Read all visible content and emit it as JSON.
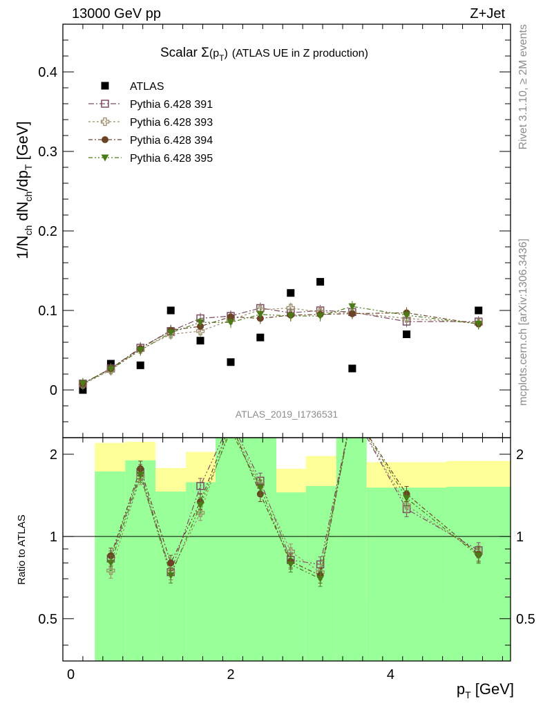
{
  "header": {
    "left": "13000 GeV pp",
    "right": "Z+Jet"
  },
  "side_labels": {
    "top": "Rivet 3.1.10, ≥ 2M events",
    "bottom": "mcplots.cern.ch [arXiv:1306.3436]"
  },
  "analysis_label": "ATLAS_2019_I1736531",
  "chart_data": [
    {
      "type": "scatter",
      "panel": "main",
      "title": "Scalar Σ(p_T) (ATLAS UE in Z production)",
      "title_parts": {
        "prefix": "Scalar ",
        "sigma": "Σ",
        "p_open": "(p",
        "sub": "T",
        "close": ")",
        "rest": "(ATLAS UE in Z production)"
      },
      "ylabel": "1/N_ch dN_ch/dp_T [GeV]",
      "ylabel_parts": {
        "a": "1/N",
        "a_sub": "ch",
        "b": " dN",
        "b_sub": "ch",
        "c": "/dp",
        "c_sub": "T",
        "d": " [GeV]"
      },
      "xlim": [
        -0.1,
        5.5
      ],
      "ylim": [
        -0.06,
        0.46
      ],
      "yticks": [
        0,
        0.1,
        0.2,
        0.3,
        0.4
      ],
      "ytick_labels": [
        "0",
        "0.1",
        "0.2",
        "0.3",
        "0.4"
      ],
      "legend_position": "top-left",
      "series": [
        {
          "name": "ATLAS",
          "color": "#000000",
          "marker": "square-filled",
          "x": [
            0.15,
            0.5,
            0.87,
            1.25,
            1.62,
            2.0,
            2.37,
            2.75,
            3.12,
            3.52,
            4.2,
            5.1
          ],
          "y": [
            0.0,
            0.033,
            0.031,
            0.1,
            0.062,
            0.035,
            0.066,
            0.122,
            0.136,
            0.027,
            0.07,
            0.1
          ]
        },
        {
          "name": "Pythia 6.428 391",
          "color": "#7b4b63",
          "marker": "square-open",
          "dash": "8,3,2,3",
          "x": [
            0.15,
            0.5,
            0.87,
            1.25,
            1.62,
            2.0,
            2.37,
            2.75,
            3.12,
            3.52,
            4.2,
            5.1
          ],
          "y": [
            0.008,
            0.027,
            0.053,
            0.074,
            0.09,
            0.093,
            0.103,
            0.097,
            0.1,
            0.098,
            0.086,
            0.086
          ]
        },
        {
          "name": "Pythia 6.428 393",
          "color": "#9b8b68",
          "marker": "cross-open",
          "dash": "3,3",
          "x": [
            0.15,
            0.5,
            0.87,
            1.25,
            1.62,
            2.0,
            2.37,
            2.75,
            3.12,
            3.52,
            4.2,
            5.1
          ],
          "y": [
            0.007,
            0.025,
            0.051,
            0.07,
            0.074,
            0.088,
            0.101,
            0.103,
            0.098,
            0.097,
            0.09,
            0.084
          ]
        },
        {
          "name": "Pythia 6.428 394",
          "color": "#6b4226",
          "marker": "circle-filled",
          "dash": "6,3,2,3",
          "x": [
            0.15,
            0.5,
            0.87,
            1.25,
            1.62,
            2.0,
            2.37,
            2.75,
            3.12,
            3.52,
            4.2,
            5.1
          ],
          "y": [
            0.008,
            0.027,
            0.052,
            0.075,
            0.08,
            0.092,
            0.09,
            0.094,
            0.095,
            0.096,
            0.097,
            0.083
          ]
        },
        {
          "name": "Pythia 6.428 395",
          "color": "#4b7b17",
          "marker": "triangle-down-filled",
          "dash": "6,3,2,3,2,3",
          "x": [
            0.15,
            0.5,
            0.87,
            1.25,
            1.62,
            2.0,
            2.37,
            2.75,
            3.12,
            3.52,
            4.2,
            5.1
          ],
          "y": [
            0.008,
            0.026,
            0.05,
            0.072,
            0.085,
            0.085,
            0.095,
            0.093,
            0.093,
            0.105,
            0.094,
            0.083
          ]
        }
      ]
    },
    {
      "type": "line",
      "panel": "ratio",
      "ylabel": "Ratio to ATLAS",
      "xlabel": "p_T [GeV]",
      "xlabel_parts": {
        "a": "p",
        "sub": "T",
        "b": " [GeV]"
      },
      "xlim": [
        -0.1,
        5.5
      ],
      "ylim": [
        0.35,
        2.3
      ],
      "ylog": true,
      "xticks": [
        0,
        2,
        4
      ],
      "xtick_labels": [
        "0",
        "2",
        "4"
      ],
      "yticks": [
        0.5,
        1,
        2
      ],
      "ytick_labels": [
        "0.5",
        "1",
        "2"
      ],
      "reference_line": 1,
      "bands": {
        "edges": [
          0.3,
          0.68,
          1.06,
          1.44,
          1.81,
          2.19,
          2.57,
          2.94,
          3.32,
          3.7,
          4.7,
          5.5
        ],
        "green_lo": [
          0.3,
          0.3,
          0.3,
          0.3,
          0.3,
          0.3,
          0.3,
          0.3,
          0.3,
          0.3,
          0.3
        ],
        "green_hi": [
          1.73,
          1.9,
          1.46,
          1.58,
          3.0,
          3.0,
          1.45,
          1.53,
          3.0,
          1.51,
          1.52
        ],
        "yellow_lo": [
          0.3,
          0.3,
          0.66,
          0.46,
          0.3,
          0.3,
          0.67,
          0.51,
          0.3,
          0.59,
          0.57
        ],
        "yellow_hi": [
          2.2,
          2.22,
          1.78,
          2.04,
          3.0,
          3.0,
          1.77,
          1.97,
          3.0,
          1.87,
          1.89
        ]
      },
      "series": [
        {
          "name": "Pythia 6.428 391",
          "color": "#7b4b63",
          "marker": "square-open",
          "dash": "8,3,2,3,2,3",
          "x": [
            0.5,
            0.87,
            1.25,
            1.62,
            2.0,
            2.37,
            2.75,
            3.12,
            3.52,
            4.2,
            5.1
          ],
          "y": [
            0.83,
            1.72,
            0.74,
            1.53,
            2.65,
            1.6,
            0.82,
            0.79,
            3.6,
            1.26,
            0.89
          ]
        },
        {
          "name": "Pythia 6.428 393",
          "color": "#9b8b68",
          "marker": "cross-open",
          "dash": "3,3",
          "x": [
            0.5,
            0.87,
            1.25,
            1.62,
            2.0,
            2.37,
            2.75,
            3.12,
            3.52,
            4.2,
            5.1
          ],
          "y": [
            0.75,
            1.65,
            0.74,
            1.22,
            2.55,
            1.55,
            0.88,
            0.74,
            3.6,
            1.3,
            0.87
          ]
        },
        {
          "name": "Pythia 6.428 394",
          "color": "#6b4226",
          "marker": "circle-filled",
          "dash": "6,3,2,3",
          "x": [
            0.5,
            0.87,
            1.25,
            1.62,
            2.0,
            2.37,
            2.75,
            3.12,
            3.52,
            4.2,
            5.1
          ],
          "y": [
            0.85,
            1.77,
            0.8,
            1.34,
            2.6,
            1.43,
            0.81,
            0.72,
            3.6,
            1.43,
            0.86
          ]
        },
        {
          "name": "Pythia 6.428 395",
          "color": "#4b7b17",
          "marker": "triangle-down-filled",
          "dash": "6,3,2,3,2,3",
          "x": [
            0.5,
            0.87,
            1.25,
            1.62,
            2.0,
            2.37,
            2.75,
            3.12,
            3.52,
            4.2,
            5.1
          ],
          "y": [
            0.8,
            1.68,
            0.72,
            1.3,
            2.45,
            1.51,
            0.79,
            0.7,
            3.6,
            1.38,
            0.85
          ]
        }
      ]
    }
  ]
}
